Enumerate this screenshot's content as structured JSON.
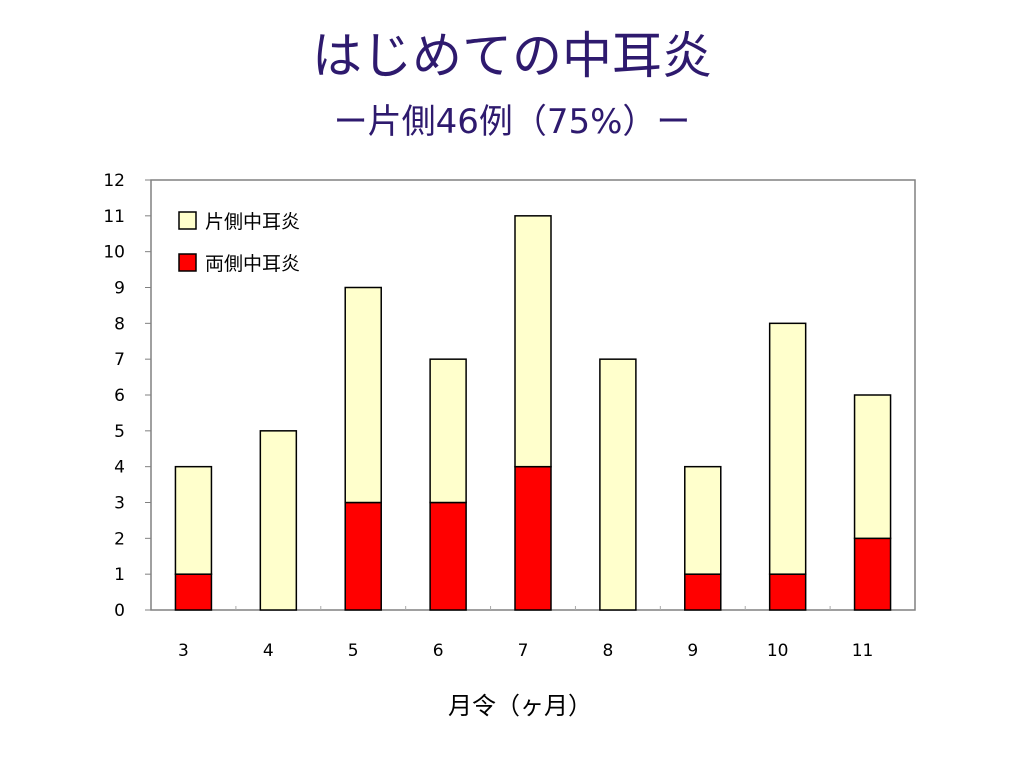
{
  "slide": {
    "title": "はじめての中耳炎",
    "subtitle": "ー片側46例（75%）ー"
  },
  "colors": {
    "title": "#2e1a6e",
    "unilateral": "#ffffcc",
    "bilateral": "#ff0000",
    "outline": "#000000"
  },
  "chart_data": {
    "type": "bar",
    "stacked": true,
    "categories": [
      "3",
      "4",
      "5",
      "6",
      "7",
      "8",
      "9",
      "10",
      "11"
    ],
    "series": [
      {
        "name": "両側中耳炎",
        "values": [
          1,
          0,
          3,
          3,
          4,
          0,
          1,
          1,
          2
        ]
      },
      {
        "name": "片側中耳炎",
        "values": [
          3,
          5,
          6,
          4,
          7,
          7,
          3,
          7,
          4
        ]
      }
    ],
    "legend_order": [
      "片側中耳炎",
      "両側中耳炎"
    ],
    "title": "",
    "xlabel": "月令（ヶ月）",
    "ylabel": "",
    "ylim": [
      0,
      12
    ],
    "yticks": [
      "0",
      "1",
      "2",
      "3",
      "4",
      "5",
      "6",
      "7",
      "8",
      "9",
      "10",
      "11",
      "12"
    ],
    "grid": false,
    "legend_position": "top-left"
  }
}
